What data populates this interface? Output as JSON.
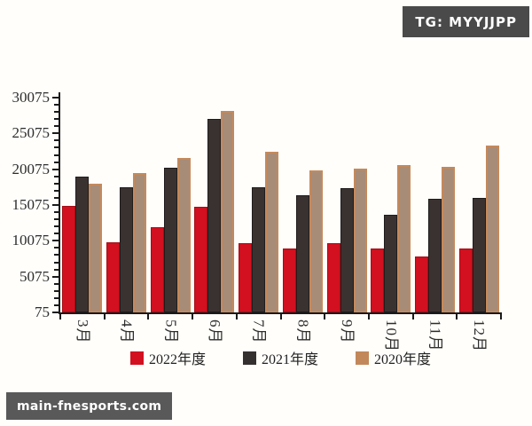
{
  "badges": {
    "tg": "TG: MYYJJPP",
    "site": "main-fnesports.com"
  },
  "chart_data": {
    "type": "bar",
    "title": "",
    "xlabel": "",
    "ylabel": "",
    "categories": [
      "3月",
      "4月",
      "5月",
      "6月",
      "7月",
      "8月",
      "9月",
      "10月",
      "11月",
      "12月"
    ],
    "series": [
      {
        "name": "2022年度",
        "color": "#d2101f",
        "fill": "#d2101f",
        "border": "#a50d16",
        "values": [
          14900,
          9900,
          12000,
          14800,
          9700,
          9000,
          9700,
          9000,
          7900,
          9000
        ]
      },
      {
        "name": "2021年度",
        "color": "#353030",
        "fill": "#3a3231",
        "border": "#1f1c1b",
        "values": [
          19100,
          17500,
          20300,
          27100,
          17600,
          16500,
          17400,
          13700,
          16000,
          16100
        ]
      },
      {
        "name": "2020年度",
        "color": "#c3885a",
        "fill": "#a78c78",
        "border": "#c5895b",
        "values": [
          18000,
          19500,
          21700,
          28200,
          22500,
          19900,
          20100,
          20600,
          20400,
          23400
        ]
      }
    ],
    "ylim": [
      75,
      30075
    ],
    "yticks": [
      75,
      5075,
      10075,
      15075,
      20075,
      25075,
      30075
    ],
    "minor_tick_step": 1000,
    "x_tick_style": "category-boundaries",
    "legend_position": "bottom",
    "grid": false,
    "background": "#fffefb",
    "axis_color": "#1a1a1a"
  }
}
